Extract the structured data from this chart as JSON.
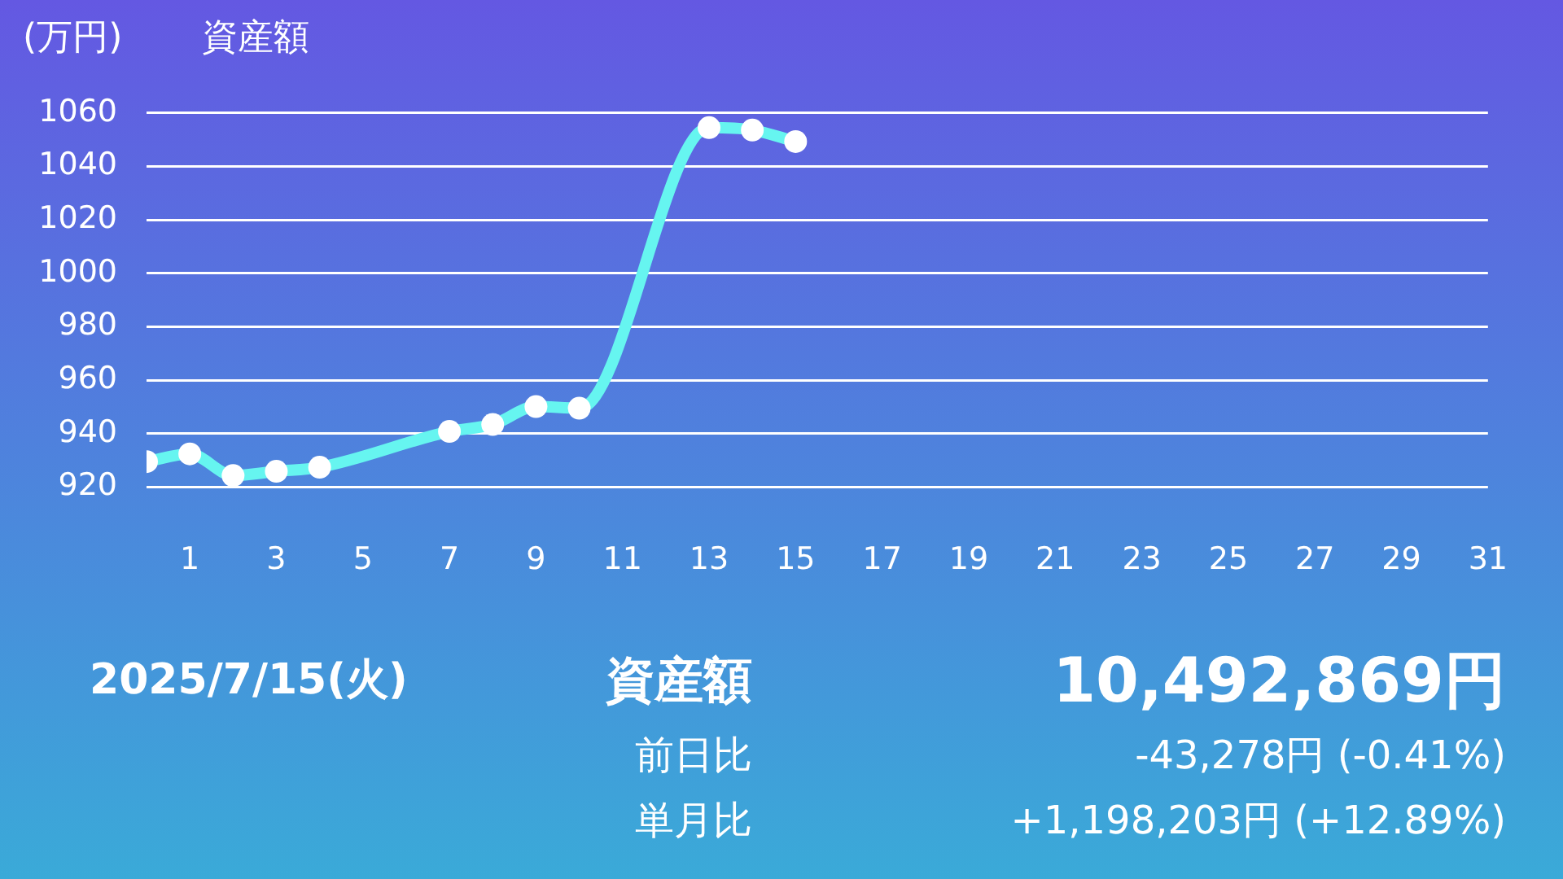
{
  "chart_data": {
    "type": "line",
    "title": "資産額",
    "ylabel": "(万円)",
    "x": [
      0,
      1,
      2,
      3,
      4,
      7,
      8,
      9,
      10,
      13,
      14,
      15
    ],
    "series": [
      {
        "color": "#66f5f0",
        "values": [
          929.5,
          932.4,
          924.3,
          925.9,
          927.4,
          940.8,
          943.4,
          950.1,
          949.5,
          1054.5,
          1053.6,
          1049.3
        ]
      }
    ],
    "xlim": [
      0,
      31
    ],
    "xticks": [
      1,
      3,
      5,
      7,
      9,
      11,
      13,
      15,
      17,
      19,
      21,
      23,
      25,
      27,
      29,
      31
    ],
    "ylim": [
      920,
      1060
    ],
    "yticks": [
      920,
      940,
      960,
      980,
      1000,
      1020,
      1040,
      1060
    ],
    "grid": "y",
    "legend": false,
    "marker": "circle",
    "line_style": "solid",
    "annotations": [
      "2025/7/15(火)",
      "資産額",
      "10,492,869円",
      "前日比",
      "-43,278円 (-0.41%)",
      "単月比",
      "+1,198,203円 (+12.89%)"
    ]
  }
}
